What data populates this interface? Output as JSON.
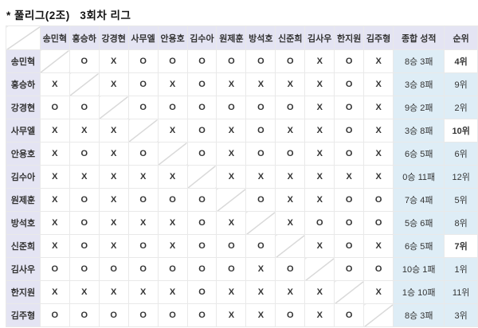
{
  "title": "* 풀리그(2조)   3회차 리그",
  "colors": {
    "header_bg": "#e4e4f3",
    "summary_bg": "#deedf6",
    "highlight_rank_bg": "#ffffff",
    "win_mark_color": "#ec7aa0",
    "loss_mark_color": "#2f9fe1",
    "grid_line": "#e9e9e9",
    "diagonal_line": "#d9d9d9",
    "text": "#333333"
  },
  "table": {
    "win_mark": "O",
    "loss_mark": "X",
    "players": [
      "송민혁",
      "홍승하",
      "강경현",
      "사무엘",
      "안용호",
      "김수아",
      "원제훈",
      "방석호",
      "신준희",
      "김사우",
      "한지원",
      "김주형"
    ],
    "summary_headers": [
      "종합 성적",
      "순위"
    ],
    "rows": [
      {
        "name": "송민혁",
        "results": [
          "",
          "O",
          "X",
          "O",
          "O",
          "O",
          "O",
          "O",
          "O",
          "X",
          "O",
          "X"
        ],
        "record": "8승 3패",
        "rank": "4위",
        "rank_bold": true
      },
      {
        "name": "홍승하",
        "results": [
          "X",
          "",
          "X",
          "O",
          "X",
          "O",
          "X",
          "X",
          "X",
          "X",
          "O",
          "X"
        ],
        "record": "3승 8패",
        "rank": "9위",
        "rank_bold": false
      },
      {
        "name": "강경현",
        "results": [
          "O",
          "O",
          "",
          "O",
          "O",
          "O",
          "O",
          "O",
          "O",
          "X",
          "O",
          "X"
        ],
        "record": "9승 2패",
        "rank": "2위",
        "rank_bold": false
      },
      {
        "name": "사무엘",
        "results": [
          "X",
          "X",
          "X",
          "",
          "X",
          "O",
          "X",
          "O",
          "X",
          "X",
          "O",
          "X"
        ],
        "record": "3승 8패",
        "rank": "10위",
        "rank_bold": true
      },
      {
        "name": "안용호",
        "results": [
          "X",
          "O",
          "X",
          "O",
          "",
          "O",
          "X",
          "O",
          "O",
          "X",
          "O",
          "X"
        ],
        "record": "6승 5패",
        "rank": "6위",
        "rank_bold": false
      },
      {
        "name": "김수아",
        "results": [
          "X",
          "X",
          "X",
          "X",
          "X",
          "",
          "X",
          "X",
          "X",
          "X",
          "X",
          "X"
        ],
        "record": "0승 11패",
        "rank": "12위",
        "rank_bold": false
      },
      {
        "name": "원제훈",
        "results": [
          "X",
          "O",
          "X",
          "O",
          "O",
          "O",
          "",
          "O",
          "X",
          "X",
          "O",
          "O"
        ],
        "record": "7승 4패",
        "rank": "5위",
        "rank_bold": false
      },
      {
        "name": "방석호",
        "results": [
          "X",
          "O",
          "X",
          "X",
          "X",
          "O",
          "X",
          "",
          "X",
          "O",
          "O",
          "O"
        ],
        "record": "5승 6패",
        "rank": "8위",
        "rank_bold": false
      },
      {
        "name": "신준희",
        "results": [
          "X",
          "O",
          "X",
          "O",
          "X",
          "O",
          "O",
          "O",
          "",
          "X",
          "O",
          "X"
        ],
        "record": "6승 5패",
        "rank": "7위",
        "rank_bold": true
      },
      {
        "name": "김사우",
        "results": [
          "O",
          "O",
          "O",
          "O",
          "O",
          "O",
          "O",
          "X",
          "O",
          "",
          "O",
          "O"
        ],
        "record": "10승 1패",
        "rank": "1위",
        "rank_bold": false
      },
      {
        "name": "한지원",
        "results": [
          "X",
          "X",
          "X",
          "X",
          "X",
          "O",
          "X",
          "X",
          "X",
          "X",
          "",
          "X"
        ],
        "record": "1승 10패",
        "rank": "11위",
        "rank_bold": false
      },
      {
        "name": "김주형",
        "results": [
          "O",
          "O",
          "O",
          "O",
          "O",
          "O",
          "X",
          "X",
          "O",
          "X",
          "O",
          ""
        ],
        "record": "8승 3패",
        "rank": "3위",
        "rank_bold": false
      }
    ]
  }
}
